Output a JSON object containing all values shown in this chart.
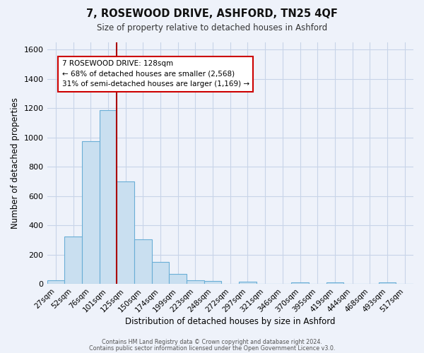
{
  "title": "7, ROSEWOOD DRIVE, ASHFORD, TN25 4QF",
  "subtitle": "Size of property relative to detached houses in Ashford",
  "xlabel": "Distribution of detached houses by size in Ashford",
  "ylabel": "Number of detached properties",
  "bar_labels": [
    "27sqm",
    "52sqm",
    "76sqm",
    "101sqm",
    "125sqm",
    "150sqm",
    "174sqm",
    "199sqm",
    "223sqm",
    "248sqm",
    "272sqm",
    "297sqm",
    "321sqm",
    "346sqm",
    "370sqm",
    "395sqm",
    "419sqm",
    "444sqm",
    "468sqm",
    "493sqm",
    "517sqm"
  ],
  "bar_values": [
    25,
    325,
    975,
    1185,
    700,
    305,
    150,
    70,
    25,
    20,
    0,
    15,
    0,
    0,
    10,
    0,
    10,
    0,
    0,
    10,
    0
  ],
  "bar_color": "#c9dff0",
  "bar_edge_color": "#6aaed6",
  "grid_color": "#c8d4e8",
  "background_color": "#eef2fa",
  "vline_x": 3.5,
  "vline_color": "#aa0000",
  "ylim": [
    0,
    1650
  ],
  "yticks": [
    0,
    200,
    400,
    600,
    800,
    1000,
    1200,
    1400,
    1600
  ],
  "annotation_title": "7 ROSEWOOD DRIVE: 128sqm",
  "annotation_line1": "← 68% of detached houses are smaller (2,568)",
  "annotation_line2": "31% of semi-detached houses are larger (1,169) →",
  "annotation_box_color": "#ffffff",
  "annotation_border_color": "#cc0000",
  "footer1": "Contains HM Land Registry data © Crown copyright and database right 2024.",
  "footer2": "Contains public sector information licensed under the Open Government Licence v3.0."
}
